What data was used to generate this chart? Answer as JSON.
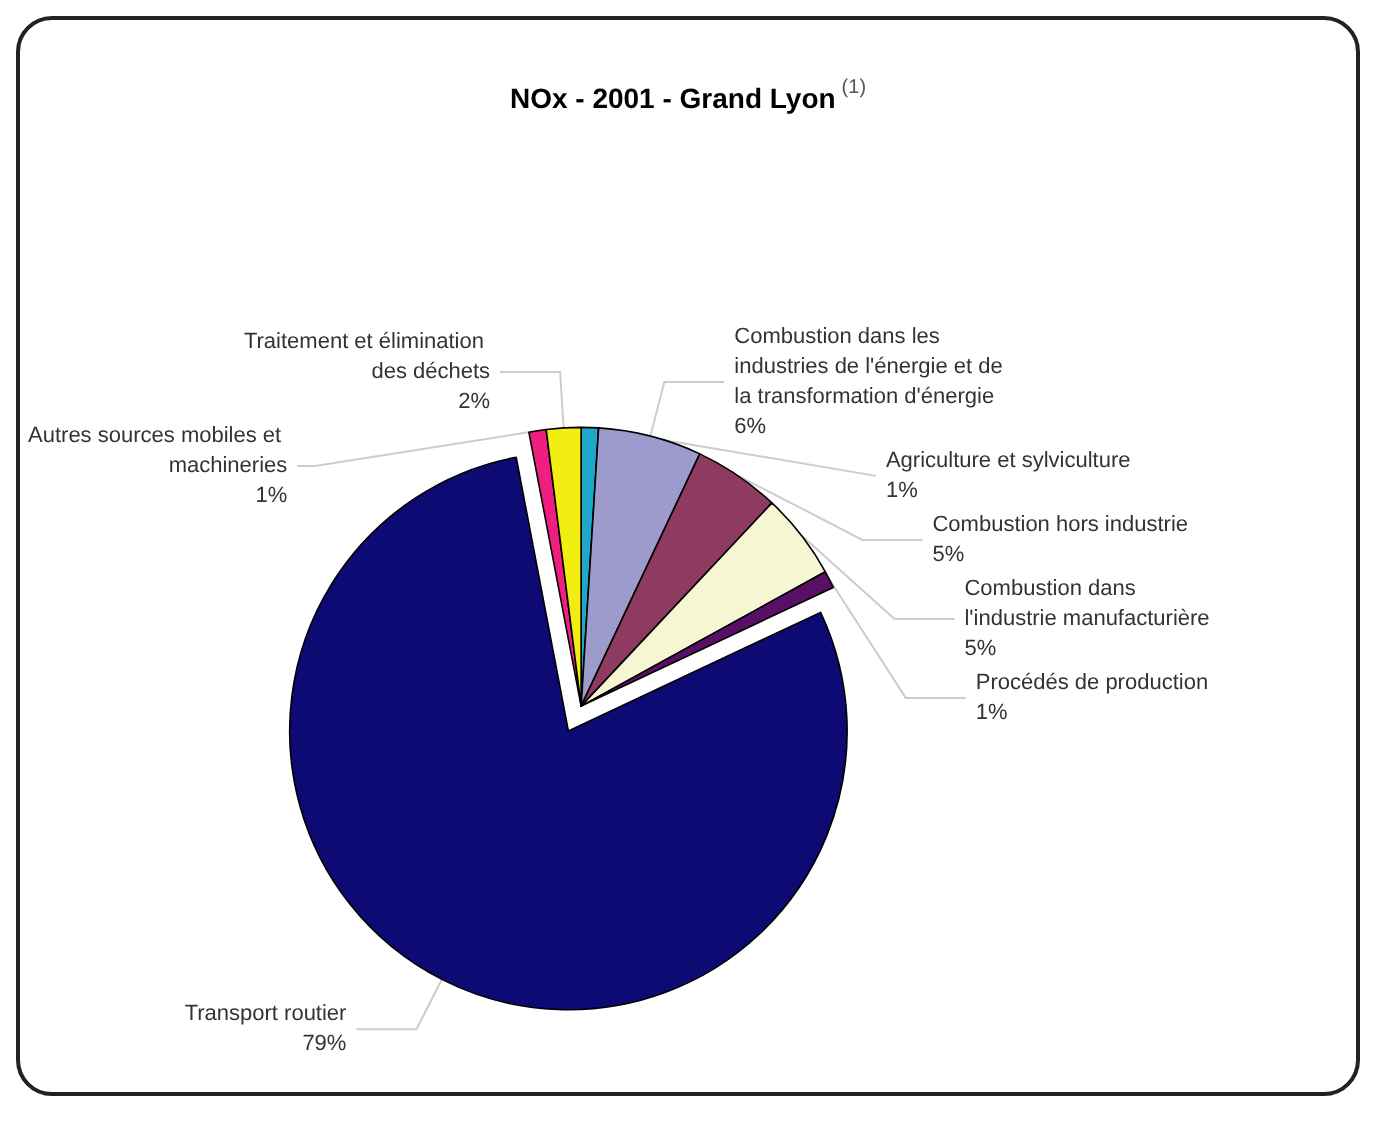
{
  "chart_data": {
    "type": "pie",
    "title": "NOx - 2001 - Grand Lyon$^{(1)}$",
    "categories": [
      "Agriculture et sylviculture",
      "Combustion dans les industries de l'énergie et de la transformation d'énergie",
      "Combustion hors industrie",
      "Combustion dans l'industrie manufacturière",
      "Procédés de production",
      "Transport routier",
      "Autres sources mobiles et machineries",
      "Traitement et élimination des déchets"
    ],
    "values": [
      1,
      6,
      5,
      5,
      1,
      79,
      1,
      2
    ],
    "value_labels": [
      "1%",
      "6%",
      "5%",
      "5%",
      "1%",
      "79%",
      "1%",
      "2%"
    ],
    "colors": [
      "#1fa6c9",
      "#9d9bcb",
      "#8e3a61",
      "#f6f6d2",
      "#5a0f66",
      "#0d0a73",
      "#ee1f7e",
      "#f3ee12"
    ],
    "legend": false
  }
}
